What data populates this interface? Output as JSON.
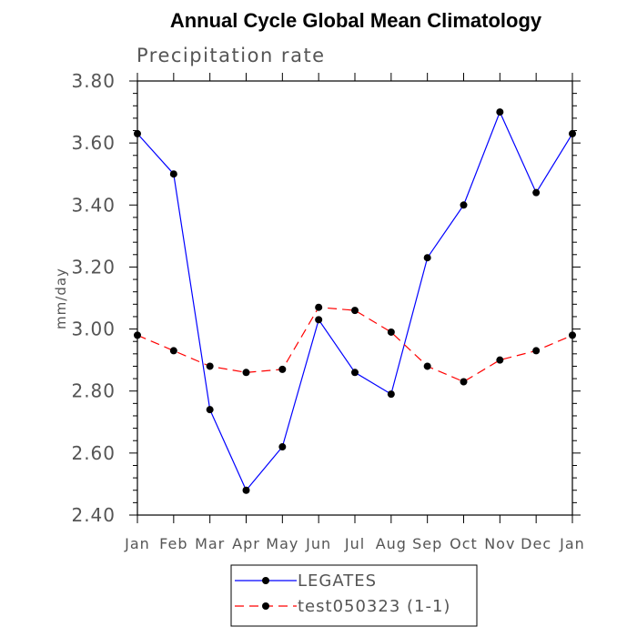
{
  "chart_data": {
    "type": "line",
    "title": "Annual Cycle Global Mean Climatology",
    "subtitle": "Precipitation rate",
    "xlabel": "",
    "ylabel": "mm/day",
    "categories": [
      "Jan",
      "Feb",
      "Mar",
      "Apr",
      "May",
      "Jun",
      "Jul",
      "Aug",
      "Sep",
      "Oct",
      "Nov",
      "Dec",
      "Jan"
    ],
    "ylim": [
      2.4,
      3.8
    ],
    "yticks": [
      "2.40",
      "2.60",
      "2.80",
      "3.00",
      "3.20",
      "3.40",
      "3.60",
      "3.80"
    ],
    "grid": false,
    "legend_position": "bottom",
    "series": [
      {
        "name": "LEGATES",
        "color": "#0000ff",
        "dash": "solid",
        "marker": "filled-circle",
        "values": [
          3.63,
          3.5,
          2.74,
          2.48,
          2.62,
          3.03,
          2.86,
          2.79,
          3.23,
          3.4,
          3.7,
          3.44,
          3.63
        ]
      },
      {
        "name": "test050323 (1-1)",
        "color": "#ff0000",
        "dash": "dashed",
        "marker": "filled-circle",
        "values": [
          2.98,
          2.93,
          2.88,
          2.86,
          2.87,
          3.07,
          3.06,
          2.99,
          2.88,
          2.83,
          2.9,
          2.93,
          2.98
        ]
      }
    ]
  }
}
